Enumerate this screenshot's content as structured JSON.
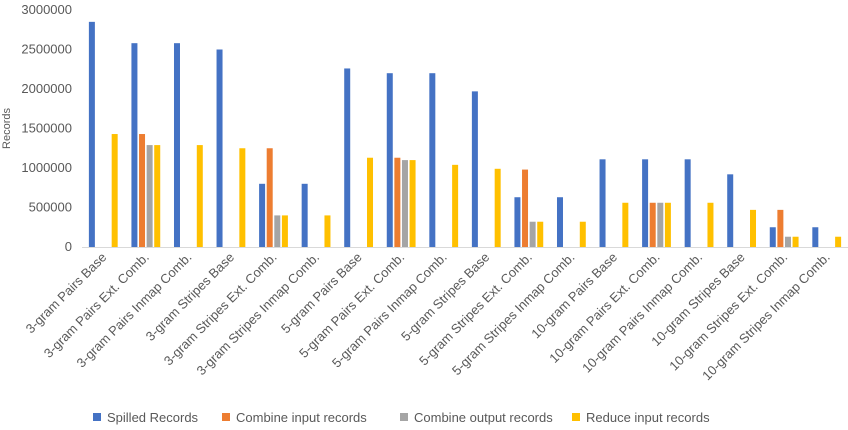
{
  "chart_data": {
    "type": "bar",
    "title": "",
    "xlabel": "",
    "ylabel": "Records",
    "ylim": [
      0,
      3000000
    ],
    "yticks": [
      0,
      500000,
      1000000,
      1500000,
      2000000,
      2500000,
      3000000
    ],
    "ytick_labels": [
      "0",
      "500000",
      "1000000",
      "1500000",
      "2000000",
      "2500000",
      "3000000"
    ],
    "grid": false,
    "legend_position": "bottom",
    "categories": [
      "3-gram Pairs Base",
      "3-gram Pairs Ext. Comb.",
      "3-gram Pairs Inmap Comb.",
      "3-gram Stripes Base",
      "3-gram Stripes Ext. Comb.",
      "3-gram Stripes Inmap Comb.",
      "5-gram Pairs Base",
      "5-gram Pairs Ext. Comb.",
      "5-gram Pairs Inmap Comb.",
      "5-gram Stripes Base",
      "5-gram Stripes Ext. Comb.",
      "5-gram Stripes Inmap Comb.",
      "10-gram Pairs Base",
      "10-gram Pairs Ext. Comb.",
      "10-gram Pairs Inmap Comb.",
      "10-gram Stripes Base",
      "10-gram Stripes Ext. Comb.",
      "10-gram Stripes Inmap Comb."
    ],
    "series": [
      {
        "name": "Spilled Records",
        "color": "#4472C4",
        "values": [
          2850000,
          2580000,
          2580000,
          2500000,
          800000,
          800000,
          2260000,
          2200000,
          2200000,
          1970000,
          630000,
          630000,
          1110000,
          1110000,
          1110000,
          920000,
          250000,
          250000
        ]
      },
      {
        "name": "Combine input records",
        "color": "#ED7D31",
        "values": [
          0,
          1430000,
          0,
          0,
          1250000,
          0,
          0,
          1130000,
          0,
          0,
          980000,
          0,
          0,
          560000,
          0,
          0,
          470000,
          0
        ]
      },
      {
        "name": "Combine output records",
        "color": "#A5A5A5",
        "values": [
          0,
          1290000,
          0,
          0,
          400000,
          0,
          0,
          1100000,
          0,
          0,
          320000,
          0,
          0,
          560000,
          0,
          0,
          130000,
          0
        ]
      },
      {
        "name": "Reduce input records",
        "color": "#FFC000",
        "values": [
          1430000,
          1290000,
          1290000,
          1250000,
          400000,
          400000,
          1130000,
          1100000,
          1040000,
          990000,
          320000,
          320000,
          560000,
          560000,
          560000,
          470000,
          130000,
          130000
        ]
      }
    ]
  }
}
